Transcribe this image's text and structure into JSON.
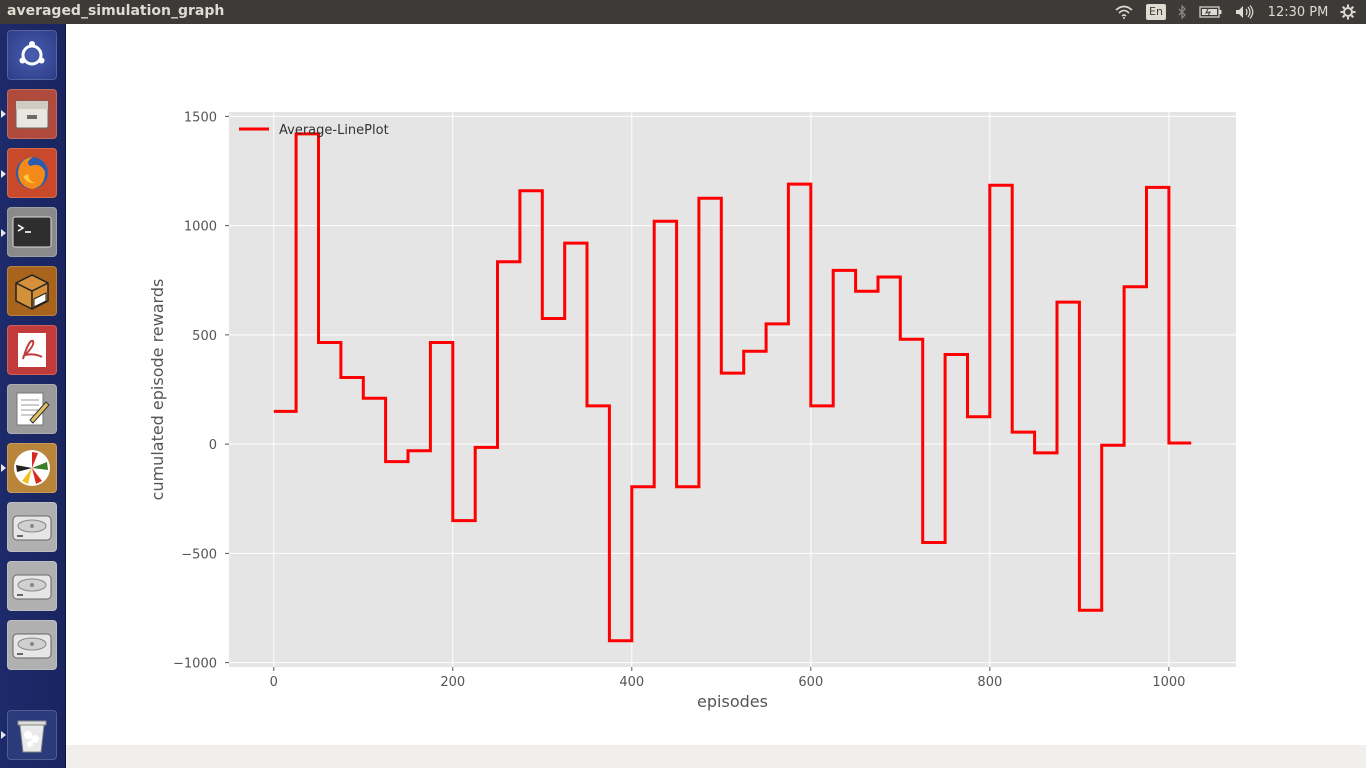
{
  "window": {
    "title": "averaged_simulation_graph"
  },
  "tray": {
    "network_icon": "wifi-icon",
    "keyboard_layout": "En",
    "bluetooth_icon": "bluetooth-icon",
    "battery_icon": "battery-icon",
    "volume_icon": "volume-icon",
    "clock": "12:30 PM",
    "settings_icon": "gear-icon"
  },
  "launcher": {
    "items": [
      {
        "name": "ubuntu-dash-icon"
      },
      {
        "name": "files-icon"
      },
      {
        "name": "firefox-icon"
      },
      {
        "name": "terminal-icon"
      },
      {
        "name": "package-installer-icon"
      },
      {
        "name": "pdf-reader-icon"
      },
      {
        "name": "text-editor-icon"
      },
      {
        "name": "plot-viewer-icon"
      },
      {
        "name": "drive-icon"
      },
      {
        "name": "drive-icon"
      },
      {
        "name": "drive-icon"
      },
      {
        "name": "trash-icon"
      }
    ]
  },
  "colors": {
    "line": "#ff0000",
    "plot_bg": "#e5e5e5",
    "grid": "#ffffff",
    "topbar": "#3c3b37",
    "launcher": "#1d2a6b"
  },
  "chart_data": {
    "type": "line",
    "title": "",
    "xlabel": "episodes",
    "ylabel": "cumulated episode rewards",
    "xlim": [
      -50,
      1075
    ],
    "ylim": [
      -1020,
      1520
    ],
    "xticks": [
      0,
      200,
      400,
      600,
      800,
      1000
    ],
    "yticks": [
      -1000,
      -500,
      0,
      500,
      1000,
      1500
    ],
    "xtick_labels": [
      "0",
      "200",
      "400",
      "600",
      "800",
      "1000"
    ],
    "ytick_labels": [
      "−1000",
      "−500",
      "0",
      "500",
      "1000",
      "1500"
    ],
    "grid": true,
    "legend_position": "upper-left",
    "series": [
      {
        "name": "Average-LinePlot",
        "color": "#ff0000",
        "x": [
          0,
          25,
          25,
          50,
          50,
          75,
          75,
          100,
          100,
          125,
          125,
          150,
          150,
          175,
          175,
          200,
          200,
          225,
          225,
          250,
          250,
          275,
          275,
          300,
          300,
          325,
          325,
          350,
          350,
          375,
          375,
          400,
          400,
          425,
          425,
          450,
          450,
          475,
          475,
          500,
          500,
          525,
          525,
          550,
          550,
          575,
          575,
          600,
          600,
          625,
          625,
          650,
          650,
          675,
          675,
          700,
          700,
          725,
          725,
          750,
          750,
          775,
          775,
          800,
          800,
          825,
          825,
          850,
          850,
          875,
          875,
          900,
          900,
          925,
          925,
          950,
          950,
          975,
          975,
          1000,
          1000,
          1025
        ],
        "y": [
          150,
          150,
          1420,
          1420,
          465,
          465,
          305,
          305,
          210,
          210,
          -80,
          -80,
          -30,
          -30,
          465,
          465,
          -350,
          -350,
          -15,
          -15,
          835,
          835,
          1160,
          1160,
          575,
          575,
          920,
          920,
          175,
          175,
          -900,
          -900,
          -195,
          -195,
          1020,
          1020,
          -195,
          -195,
          1125,
          1125,
          325,
          325,
          425,
          425,
          550,
          550,
          1190,
          1190,
          175,
          175,
          795,
          795,
          700,
          700,
          765,
          765,
          480,
          480,
          -450,
          -450,
          410,
          410,
          125,
          125,
          1185,
          1185,
          55,
          55,
          -40,
          -40,
          650,
          650,
          -760,
          -760,
          -5,
          -5,
          720,
          720,
          1175,
          1175,
          5,
          5
        ]
      }
    ]
  }
}
